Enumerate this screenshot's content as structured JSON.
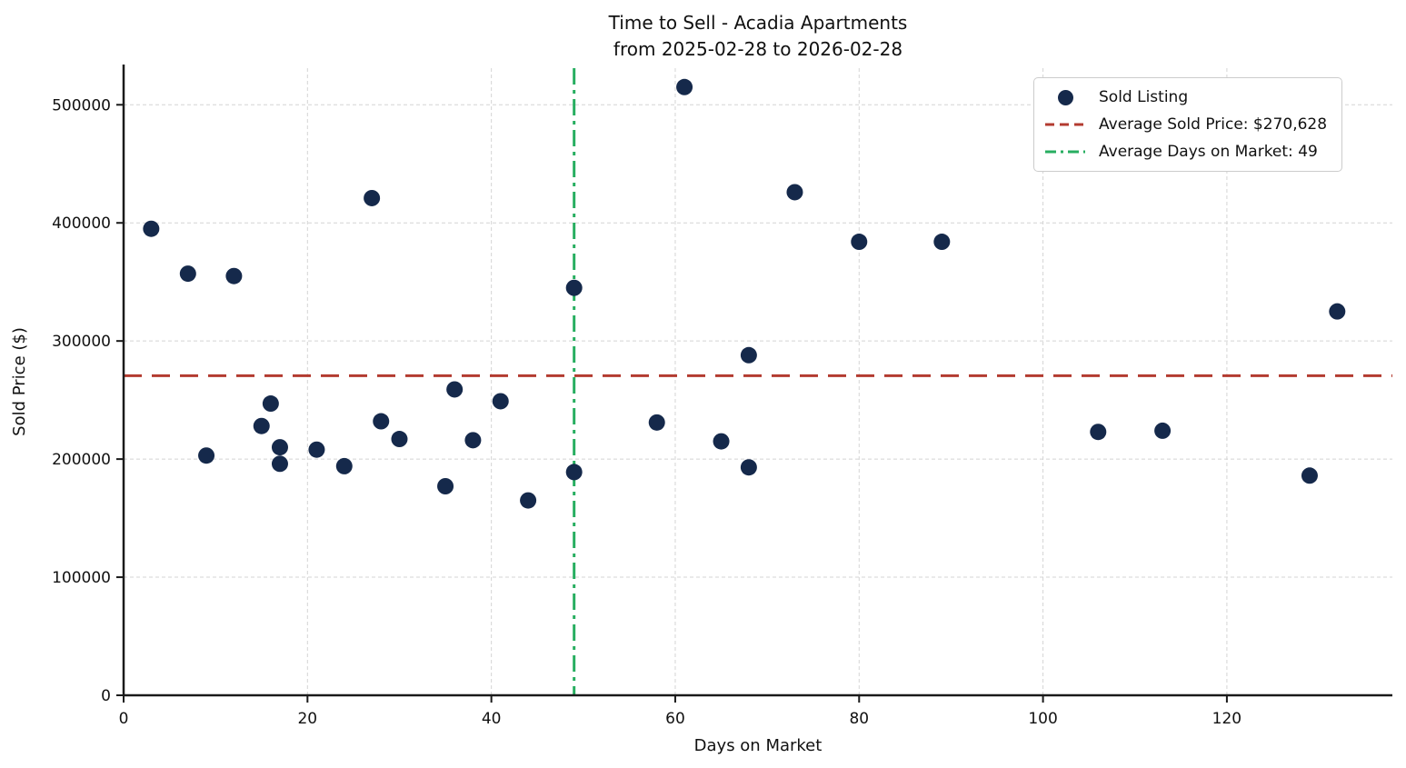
{
  "figure": {
    "title_line1": "Time to Sell - Acadia Apartments",
    "title_line2": "from 2025-02-28 to 2026-02-28"
  },
  "legend": {
    "items": [
      {
        "label": "Sold Listing",
        "marker": "dot"
      },
      {
        "label": "Average Sold Price: $270,628",
        "marker": "dashed-line"
      },
      {
        "label": "Average Days on Market: 49",
        "marker": "dashdot-line"
      }
    ]
  },
  "chart_data": {
    "type": "scatter",
    "title": "Time to Sell - Acadia Apartments\nfrom 2025-02-28 to 2026-02-28",
    "xlabel": "Days on Market",
    "ylabel": "Sold Price ($)",
    "xlim": [
      0,
      138
    ],
    "ylim": [
      0,
      531000
    ],
    "xticks": [
      0,
      20,
      40,
      60,
      80,
      100,
      120
    ],
    "yticks": [
      0,
      100000,
      200000,
      300000,
      400000,
      500000
    ],
    "grid": true,
    "legend_position": "upper right",
    "series": [
      {
        "name": "Sold Listing",
        "type": "scatter",
        "color": "#15294b",
        "points": [
          [
            3,
            395000
          ],
          [
            7,
            357000
          ],
          [
            9,
            203000
          ],
          [
            12,
            355000
          ],
          [
            15,
            228000
          ],
          [
            16,
            247000
          ],
          [
            17,
            210000
          ],
          [
            17,
            196000
          ],
          [
            21,
            208000
          ],
          [
            24,
            194000
          ],
          [
            27,
            421000
          ],
          [
            28,
            232000
          ],
          [
            30,
            217000
          ],
          [
            35,
            177000
          ],
          [
            36,
            259000
          ],
          [
            38,
            216000
          ],
          [
            41,
            249000
          ],
          [
            44,
            165000
          ],
          [
            49,
            345000
          ],
          [
            49,
            189000
          ],
          [
            58,
            231000
          ],
          [
            61,
            515000
          ],
          [
            65,
            215000
          ],
          [
            68,
            288000
          ],
          [
            68,
            193000
          ],
          [
            73,
            426000
          ],
          [
            80,
            384000
          ],
          [
            89,
            384000
          ],
          [
            106,
            223000
          ],
          [
            113,
            224000
          ],
          [
            129,
            186000
          ],
          [
            132,
            325000
          ]
        ]
      },
      {
        "name": "Average Sold Price",
        "type": "hline",
        "value": 270628,
        "label": "Average Sold Price: $270,628",
        "color": "#b33b30",
        "style": "dashed"
      },
      {
        "name": "Average Days on Market",
        "type": "vline",
        "value": 49,
        "label": "Average Days on Market: 49",
        "color": "#27ae60",
        "style": "dashdot"
      }
    ],
    "colors": {
      "grid": "#d4d4d4",
      "axis": "#1a1a1a",
      "text": "#111111"
    }
  }
}
